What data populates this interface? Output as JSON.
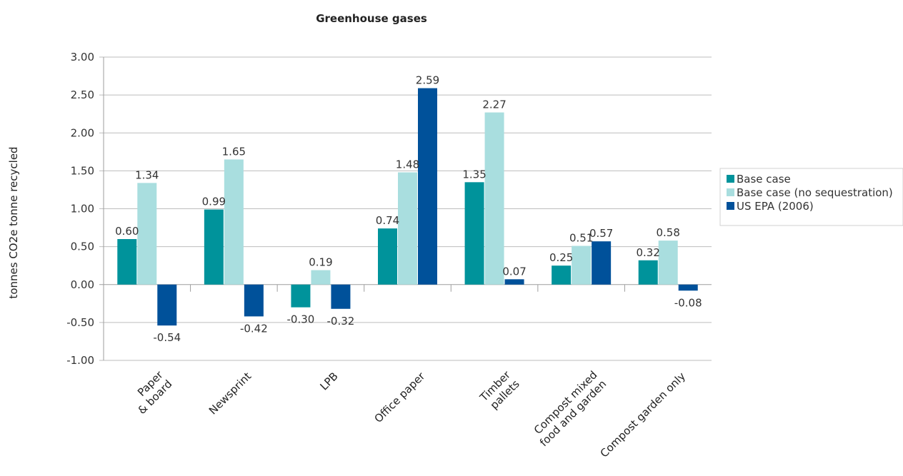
{
  "chart_data": {
    "type": "bar",
    "title": "Greenhouse gases",
    "ylabel": "tonnes CO2e tonne recycled",
    "xlabel": "",
    "ylim": [
      -1.0,
      3.0
    ],
    "yticks": [
      "3.00",
      "2.50",
      "2.00",
      "1.50",
      "1.00",
      "0.50",
      "0.00",
      "-0.50",
      "-1.00"
    ],
    "grid": true,
    "legend_position": "right",
    "categories": [
      [
        "Paper",
        "& board"
      ],
      [
        "Newsprint"
      ],
      [
        "LPB"
      ],
      [
        "Office paper"
      ],
      [
        "Timber",
        "pallets"
      ],
      [
        "Compost mixed",
        "food and garden"
      ],
      [
        "Compost  garden only"
      ]
    ],
    "series": [
      {
        "name": "Base case",
        "color": "#00939b",
        "values": [
          0.6,
          0.99,
          -0.3,
          0.74,
          1.35,
          0.25,
          0.32
        ],
        "labels": [
          "0.60",
          "0.99",
          "-0.30",
          "0.74",
          "1.35",
          "0.25",
          "0.32"
        ]
      },
      {
        "name": "Base case (no sequestration)",
        "color": "#a9dedf",
        "values": [
          1.34,
          1.65,
          0.19,
          1.48,
          2.27,
          0.51,
          0.58
        ],
        "labels": [
          "1.34",
          "1.65",
          "0.19",
          "1.48",
          "2.27",
          "0.51",
          "0.58"
        ]
      },
      {
        "name": "US EPA (2006)",
        "color": "#00519a",
        "values": [
          -0.54,
          -0.42,
          -0.32,
          2.59,
          0.07,
          0.57,
          -0.08
        ],
        "labels": [
          "-0.54",
          "-0.42",
          "-0.32",
          "2.59",
          "0.07",
          "0.57",
          "-0.08"
        ]
      }
    ]
  }
}
